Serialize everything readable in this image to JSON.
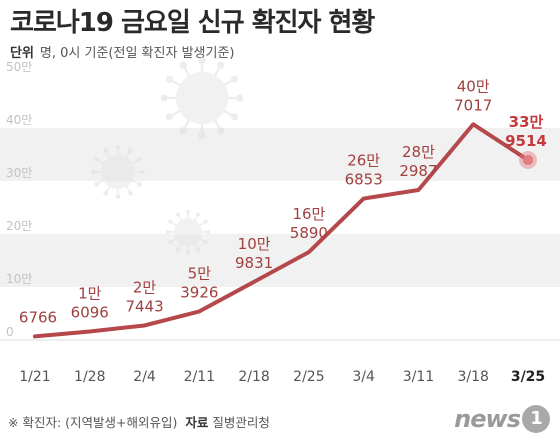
{
  "title": "코로나19 금요일 신규 확진자 현황",
  "unit_key": "단위",
  "unit_text": "명, 0시 기준(전일 확진자 발생기준)",
  "footnote": "※ 확진자: (지역발생+해외유입)",
  "source_key": "자료",
  "source_value": "질병관리청",
  "logo_word": "news",
  "logo_badge": "1",
  "colors": {
    "line": "#b5484b",
    "label": "#a0413f",
    "last_label": "#c43a3a",
    "highlight": "#e37b7f",
    "band": "#f1f1f1"
  },
  "chart_data": {
    "type": "line",
    "categories": [
      "1/21",
      "1/28",
      "2/4",
      "2/11",
      "2/18",
      "2/25",
      "3/4",
      "3/11",
      "3/18",
      "3/25"
    ],
    "values": [
      6766,
      16096,
      27443,
      53926,
      109831,
      165890,
      266853,
      282987,
      407017,
      339514
    ],
    "value_labels": [
      [
        "",
        "6766"
      ],
      [
        "1만",
        "6096"
      ],
      [
        "2만",
        "7443"
      ],
      [
        "5만",
        "3926"
      ],
      [
        "10만",
        "9831"
      ],
      [
        "16만",
        "5890"
      ],
      [
        "26만",
        "6853"
      ],
      [
        "28만",
        "2987"
      ],
      [
        "40만",
        "7017"
      ],
      [
        "33만",
        "9514"
      ]
    ],
    "y_ticks": [
      {
        "value": 0,
        "label": "0"
      },
      {
        "value": 100000,
        "label": "10만"
      },
      {
        "value": 200000,
        "label": "20만"
      },
      {
        "value": 300000,
        "label": "30만"
      },
      {
        "value": 400000,
        "label": "40만"
      },
      {
        "value": 500000,
        "label": "50만"
      }
    ],
    "ylim": [
      0,
      500000
    ],
    "grid": true,
    "highlight_last": true
  }
}
